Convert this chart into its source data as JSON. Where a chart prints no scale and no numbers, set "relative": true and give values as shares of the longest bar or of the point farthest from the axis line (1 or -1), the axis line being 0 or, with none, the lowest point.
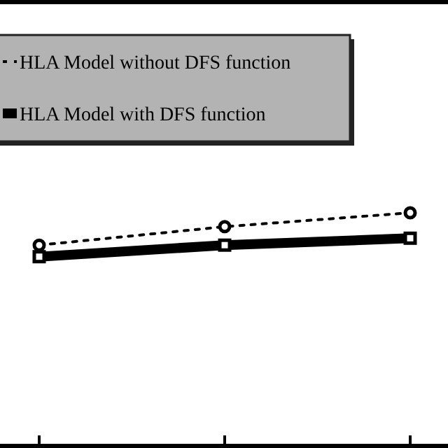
{
  "chart_data": {
    "type": "line",
    "relative": true,
    "categories": [
      null,
      null,
      null
    ],
    "legend": "top left",
    "series": [
      {
        "name": "HLA Model without DFS function",
        "color": "#000000",
        "values": [
          0.86,
          0.94,
          1.0
        ],
        "line_style": "dashed",
        "marker": "circle"
      },
      {
        "name": "HLA Model with DFS function",
        "color": "#000000",
        "values": [
          0.81,
          0.86,
          0.89
        ],
        "line_style": "solid",
        "marker": "square"
      }
    ]
  }
}
